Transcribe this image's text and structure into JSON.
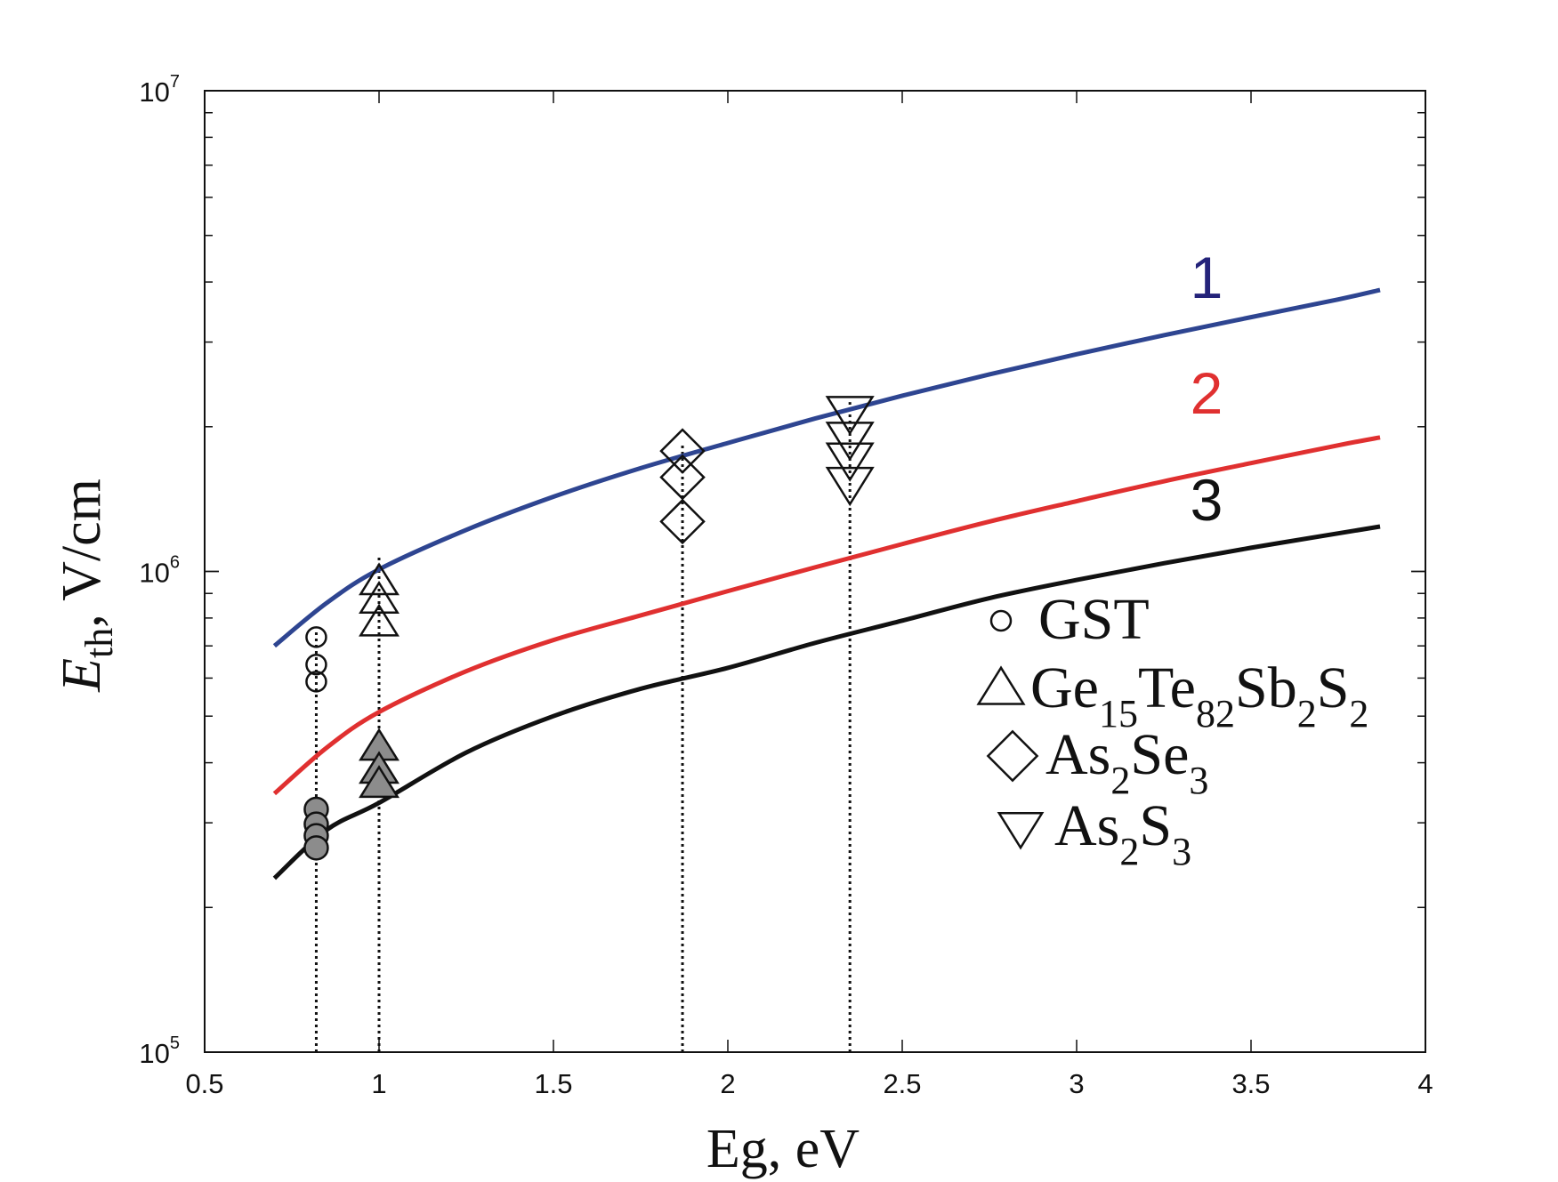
{
  "chart_data": {
    "type": "scatter",
    "title": "",
    "xlabel": "Eg, eV",
    "ylabel": {
      "symbol": "E",
      "subscript": "th",
      "unit": ", V/cm"
    },
    "xlim": [
      0.5,
      4
    ],
    "ylim": [
      100000,
      10000000
    ],
    "yscale": "log",
    "grid": false,
    "x_ticks": [
      "0.5",
      "1",
      "1.5",
      "2",
      "2.5",
      "3",
      "3.5",
      "4"
    ],
    "y_ticks": [
      {
        "base": "10",
        "exp": "5"
      },
      {
        "base": "10",
        "exp": "6"
      },
      {
        "base": "10",
        "exp": "7"
      }
    ],
    "curves": [
      {
        "name": "1",
        "color": "#2e4591",
        "x": [
          0.7,
          0.85,
          1.0,
          1.25,
          1.5,
          1.75,
          2.0,
          2.25,
          2.5,
          2.75,
          3.0,
          3.25,
          3.5,
          3.75,
          3.87
        ],
        "y": [
          700000,
          860000,
          1010000,
          1220000,
          1430000,
          1640000,
          1850000,
          2080000,
          2320000,
          2570000,
          2830000,
          3100000,
          3380000,
          3680000,
          3850000
        ]
      },
      {
        "name": "2",
        "color": "#e03030",
        "x": [
          0.7,
          0.85,
          1.0,
          1.25,
          1.5,
          1.75,
          2.0,
          2.25,
          2.5,
          2.75,
          3.0,
          3.25,
          3.5,
          3.75,
          3.87
        ],
        "y": [
          345000,
          430000,
          510000,
          620000,
          720000,
          810000,
          910000,
          1020000,
          1140000,
          1270000,
          1400000,
          1540000,
          1680000,
          1830000,
          1900000
        ]
      },
      {
        "name": "3",
        "color": "#111111",
        "x": [
          0.7,
          0.85,
          1.0,
          1.25,
          1.5,
          1.75,
          2.0,
          2.25,
          2.5,
          2.75,
          3.0,
          3.25,
          3.5,
          3.75,
          3.87
        ],
        "y": [
          230000,
          290000,
          330000,
          420000,
          500000,
          570000,
          630000,
          710000,
          790000,
          880000,
          960000,
          1040000,
          1120000,
          1200000,
          1240000
        ]
      }
    ],
    "series": [
      {
        "name": "GST",
        "marker": "circle",
        "filled": false,
        "x": [
          0.82,
          0.82,
          0.82
        ],
        "y": [
          730000,
          640000,
          590000
        ]
      },
      {
        "name": "GST",
        "marker": "circle",
        "filled": true,
        "x": [
          0.82,
          0.82,
          0.82,
          0.82
        ],
        "y": [
          320000,
          298000,
          282000,
          266000
        ]
      },
      {
        "name": "Ge15Te82Sb2S2",
        "marker": "triangle-up",
        "filled": false,
        "x": [
          1.0,
          1.0,
          1.0
        ],
        "y": [
          950000,
          870000,
          780000
        ]
      },
      {
        "name": "Ge15Te82Sb2S2",
        "marker": "triangle-up",
        "filled": true,
        "x": [
          1.0,
          1.0,
          1.0
        ],
        "y": [
          430000,
          385000,
          360000
        ]
      },
      {
        "name": "As2Se3",
        "marker": "diamond",
        "filled": false,
        "x": [
          1.87,
          1.87,
          1.87
        ],
        "y": [
          1780000,
          1570000,
          1270000
        ]
      },
      {
        "name": "As2S3",
        "marker": "triangle-down",
        "filled": false,
        "x": [
          2.35,
          2.35,
          2.35,
          2.35
        ],
        "y": [
          2150000,
          1900000,
          1720000,
          1530000
        ]
      }
    ],
    "vlines": [
      {
        "x": 0.82,
        "y_top": 750000
      },
      {
        "x": 1.0,
        "y_top": 1080000
      },
      {
        "x": 1.87,
        "y_top": 1850000
      },
      {
        "x": 2.35,
        "y_top": 2250000
      }
    ],
    "curve_labels": [
      {
        "text": "1",
        "color": "#24237a"
      },
      {
        "text": "2",
        "color": "#e03030"
      },
      {
        "text": "3",
        "color": "#111111"
      }
    ],
    "legend": {
      "position": "right",
      "items": [
        {
          "marker": "circle",
          "parts": [
            {
              "t": "GST"
            }
          ]
        },
        {
          "marker": "triangle-up",
          "parts": [
            {
              "t": "Ge"
            },
            {
              "t": "15",
              "sub": true
            },
            {
              "t": "Te"
            },
            {
              "t": "82",
              "sub": true
            },
            {
              "t": "Sb"
            },
            {
              "t": "2",
              "sub": true
            },
            {
              "t": "S"
            },
            {
              "t": "2",
              "sub": true
            }
          ]
        },
        {
          "marker": "diamond",
          "parts": [
            {
              "t": "As"
            },
            {
              "t": "2",
              "sub": true
            },
            {
              "t": "Se"
            },
            {
              "t": "3",
              "sub": true
            }
          ]
        },
        {
          "marker": "triangle-down",
          "parts": [
            {
              "t": "As"
            },
            {
              "t": "2",
              "sub": true
            },
            {
              "t": "S"
            },
            {
              "t": "3",
              "sub": true
            }
          ]
        }
      ]
    }
  }
}
